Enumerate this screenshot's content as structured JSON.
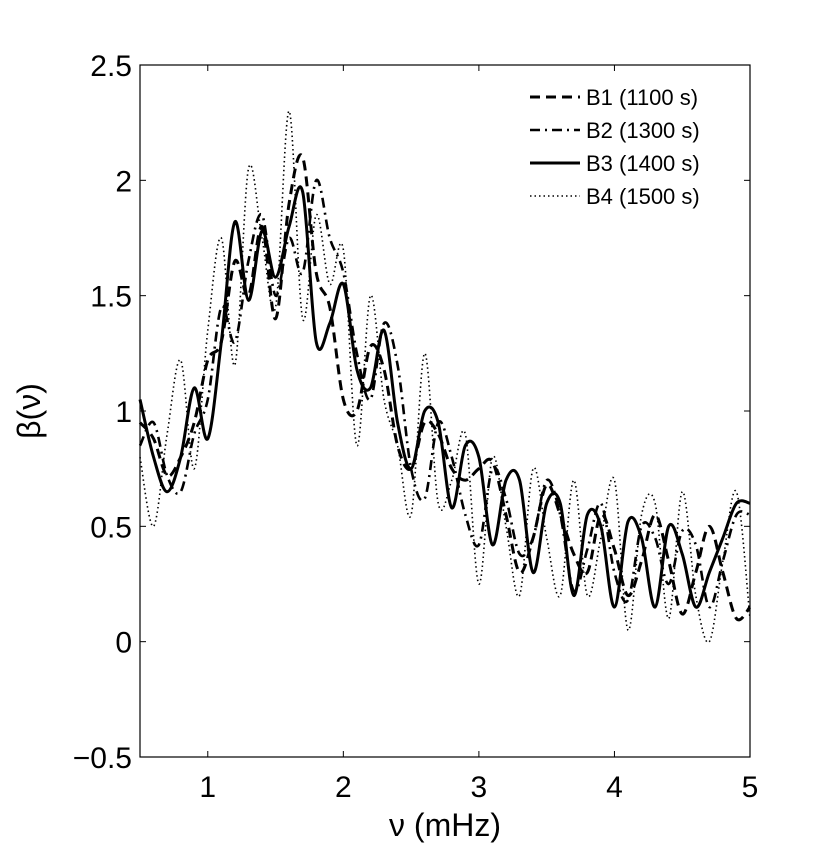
{
  "chart_data": {
    "type": "line",
    "title": "",
    "xlabel": "ν (mHz)",
    "ylabel": "β(ν)",
    "xlim": [
      0.5,
      5
    ],
    "ylim": [
      -0.5,
      2.5
    ],
    "xticks": [
      1,
      2,
      3,
      4,
      5
    ],
    "xtick_labels": [
      "1",
      "2",
      "3",
      "4",
      "5"
    ],
    "yticks": [
      -0.5,
      0,
      0.5,
      1,
      1.5,
      2,
      2.5
    ],
    "ytick_labels": [
      "−0.5",
      "0",
      "0.5",
      "1",
      "1.5",
      "2",
      "2.5"
    ],
    "grid": false,
    "legend_position": "top-right",
    "series": [
      {
        "name": "B1 (1100 s)",
        "style": "dashed",
        "color": "#000000",
        "x": [
          0.5,
          0.6,
          0.7,
          0.8,
          0.9,
          1.0,
          1.1,
          1.2,
          1.3,
          1.4,
          1.5,
          1.6,
          1.7,
          1.8,
          1.9,
          2.0,
          2.1,
          2.2,
          2.3,
          2.4,
          2.5,
          2.6,
          2.7,
          2.8,
          2.9,
          3.0,
          3.1,
          3.2,
          3.3,
          3.4,
          3.5,
          3.6,
          3.7,
          3.8,
          3.9,
          4.0,
          4.1,
          4.2,
          4.3,
          4.4,
          4.5,
          4.6,
          4.7,
          4.8,
          4.9,
          5.0
        ],
        "y": [
          0.95,
          0.88,
          0.72,
          0.8,
          0.95,
          1.22,
          1.3,
          1.65,
          1.5,
          1.8,
          1.4,
          1.9,
          2.1,
          1.6,
          1.45,
          1.05,
          1.0,
          1.28,
          1.18,
          0.85,
          0.75,
          0.95,
          0.9,
          0.75,
          0.7,
          0.75,
          0.78,
          0.55,
          0.3,
          0.45,
          0.68,
          0.55,
          0.38,
          0.3,
          0.55,
          0.4,
          0.2,
          0.35,
          0.55,
          0.35,
          0.12,
          0.3,
          0.5,
          0.3,
          0.1,
          0.15
        ]
      },
      {
        "name": "B2 (1300 s)",
        "style": "dashdot",
        "color": "#000000",
        "x": [
          0.5,
          0.6,
          0.7,
          0.8,
          0.9,
          1.0,
          1.1,
          1.2,
          1.3,
          1.4,
          1.5,
          1.6,
          1.7,
          1.8,
          1.9,
          2.0,
          2.1,
          2.2,
          2.3,
          2.4,
          2.5,
          2.6,
          2.7,
          2.8,
          2.9,
          3.0,
          3.1,
          3.2,
          3.3,
          3.4,
          3.5,
          3.6,
          3.7,
          3.8,
          3.9,
          4.0,
          4.1,
          4.2,
          4.3,
          4.4,
          4.5,
          4.6,
          4.7,
          4.8,
          4.9,
          5.0
        ],
        "y": [
          0.85,
          0.95,
          0.72,
          0.65,
          0.9,
          1.05,
          1.45,
          1.3,
          1.65,
          1.85,
          1.5,
          1.75,
          1.6,
          2.0,
          1.75,
          1.6,
          1.25,
          1.05,
          1.38,
          1.2,
          0.75,
          0.62,
          0.95,
          0.8,
          0.55,
          0.42,
          0.75,
          0.62,
          0.38,
          0.45,
          0.7,
          0.55,
          0.22,
          0.4,
          0.6,
          0.3,
          0.18,
          0.5,
          0.45,
          0.25,
          0.48,
          0.42,
          0.15,
          0.35,
          0.55,
          0.55
        ]
      },
      {
        "name": "B3 (1400 s)",
        "style": "solid",
        "color": "#000000",
        "x": [
          0.5,
          0.6,
          0.7,
          0.8,
          0.9,
          1.0,
          1.1,
          1.2,
          1.3,
          1.4,
          1.5,
          1.6,
          1.7,
          1.8,
          1.9,
          2.0,
          2.1,
          2.2,
          2.3,
          2.4,
          2.5,
          2.6,
          2.7,
          2.8,
          2.9,
          3.0,
          3.1,
          3.2,
          3.3,
          3.4,
          3.5,
          3.6,
          3.7,
          3.8,
          3.9,
          4.0,
          4.1,
          4.2,
          4.3,
          4.4,
          4.5,
          4.6,
          4.7,
          4.8,
          4.9,
          5.0
        ],
        "y": [
          1.05,
          0.8,
          0.65,
          0.8,
          1.1,
          0.88,
          1.3,
          1.82,
          1.48,
          1.78,
          1.58,
          1.8,
          1.95,
          1.3,
          1.38,
          1.55,
          1.18,
          1.1,
          1.35,
          0.95,
          0.75,
          1.0,
          0.95,
          0.58,
          0.85,
          0.8,
          0.42,
          0.7,
          0.7,
          0.3,
          0.6,
          0.6,
          0.2,
          0.55,
          0.5,
          0.15,
          0.52,
          0.45,
          0.15,
          0.5,
          0.38,
          0.15,
          0.3,
          0.45,
          0.6,
          0.6
        ]
      },
      {
        "name": "B4 (1500 s)",
        "style": "dotted",
        "color": "#000000",
        "x": [
          0.5,
          0.6,
          0.7,
          0.8,
          0.9,
          1.0,
          1.1,
          1.2,
          1.3,
          1.4,
          1.5,
          1.6,
          1.7,
          1.8,
          1.9,
          2.0,
          2.1,
          2.2,
          2.3,
          2.4,
          2.5,
          2.6,
          2.7,
          2.8,
          2.9,
          3.0,
          3.1,
          3.2,
          3.3,
          3.4,
          3.5,
          3.6,
          3.7,
          3.8,
          3.9,
          4.0,
          4.1,
          4.2,
          4.3,
          4.4,
          4.5,
          4.6,
          4.7,
          4.8,
          4.9,
          5.0
        ],
        "y": [
          0.8,
          0.5,
          0.9,
          1.22,
          0.75,
          1.35,
          1.75,
          1.2,
          2.05,
          1.75,
          1.45,
          2.3,
          1.4,
          1.85,
          1.55,
          1.7,
          0.85,
          1.5,
          1.05,
          0.85,
          0.55,
          1.25,
          0.6,
          0.7,
          0.9,
          0.25,
          0.8,
          0.5,
          0.2,
          0.75,
          0.45,
          0.2,
          0.7,
          0.2,
          0.45,
          0.7,
          0.05,
          0.55,
          0.6,
          0.1,
          0.65,
          0.2,
          0.0,
          0.35,
          0.65,
          0.1
        ]
      }
    ]
  }
}
